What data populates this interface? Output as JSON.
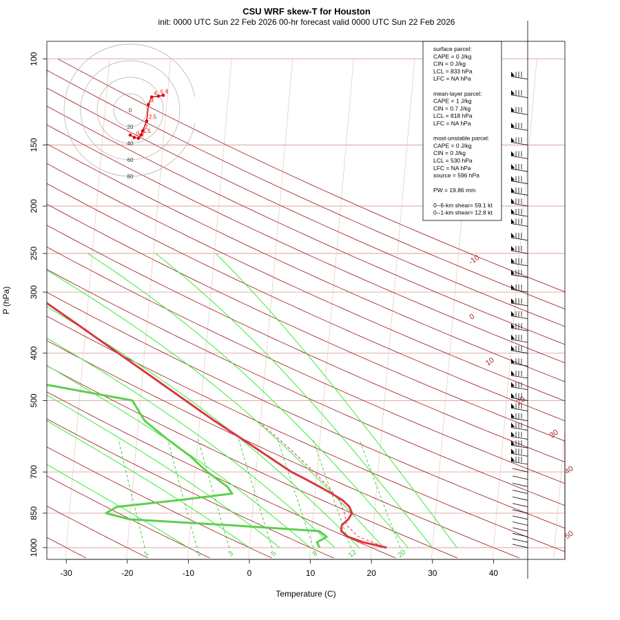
{
  "title": "CSU WRF skew-T for Houston",
  "subtitle": "init: 0000 UTC Sun 22 Feb 2026     00-hr forecast valid 0000 UTC Sun 22 Feb 2026",
  "chart_data": {
    "type": "line",
    "xlabel": "Temperature (C)",
    "ylabel": "P (hPa)",
    "x_ticks": [
      -30,
      -20,
      -10,
      0,
      10,
      20,
      30,
      40
    ],
    "y_ticks": [
      100,
      150,
      200,
      250,
      300,
      400,
      500,
      700,
      850,
      1000
    ],
    "xlim": [
      -33,
      47
    ],
    "ylim": [
      1050,
      100
    ],
    "isotherm_labels": [
      "-10",
      "0",
      "10",
      "20",
      "30",
      "40",
      "50"
    ],
    "mixing_ratio_labels": [
      "1",
      "2",
      "3",
      "5",
      "8",
      "12",
      "20"
    ],
    "series": [
      {
        "kind": "temperature",
        "color": "#dc3545",
        "points": [
          [
            1000,
            22.5
          ],
          [
            975,
            18.6
          ],
          [
            950,
            16.0
          ],
          [
            925,
            14.8
          ],
          [
            900,
            14.8
          ],
          [
            875,
            15.8
          ],
          [
            850,
            16.3
          ],
          [
            825,
            15.8
          ],
          [
            800,
            14.6
          ],
          [
            775,
            12.7
          ],
          [
            750,
            10.6
          ],
          [
            725,
            8.3
          ],
          [
            700,
            5.8
          ],
          [
            650,
            1.7
          ],
          [
            600,
            -2.7
          ],
          [
            550,
            -7.6
          ],
          [
            500,
            -12.6
          ],
          [
            450,
            -18.1
          ],
          [
            400,
            -24.3
          ],
          [
            350,
            -31.3
          ],
          [
            300,
            -39.5
          ],
          [
            275,
            -44.0
          ],
          [
            250,
            -48.7
          ],
          [
            225,
            -53.5
          ],
          [
            200,
            -57.5
          ],
          [
            175,
            -60.5
          ],
          [
            150,
            -62.0
          ],
          [
            125,
            -63.5
          ],
          [
            110,
            -64.5
          ]
        ]
      },
      {
        "kind": "dewpoint",
        "color": "#5ccf4d",
        "points": [
          [
            1000,
            11.5
          ],
          [
            975,
            11.0
          ],
          [
            950,
            12.5
          ],
          [
            925,
            11.2
          ],
          [
            900,
            -3.3
          ],
          [
            875,
            -20.0
          ],
          [
            850,
            -24.0
          ],
          [
            825,
            -22.3
          ],
          [
            800,
            -12.5
          ],
          [
            775,
            -3.6
          ],
          [
            750,
            -4.5
          ],
          [
            700,
            -8.0
          ],
          [
            650,
            -11.0
          ],
          [
            600,
            -15.0
          ],
          [
            550,
            -19.0
          ],
          [
            500,
            -21.3
          ],
          [
            450,
            -41.5
          ],
          [
            400,
            -47.0
          ],
          [
            350,
            -55.5
          ],
          [
            300,
            -64.0
          ],
          [
            250,
            -72.0
          ],
          [
            200,
            -81.0
          ],
          [
            175,
            -85.0
          ]
        ]
      },
      {
        "kind": "parcel",
        "color": "#dc3545",
        "style": "dashed",
        "points": [
          [
            1000,
            22.5
          ],
          [
            950,
            17.7
          ],
          [
            900,
            15.6
          ],
          [
            850,
            15.1
          ],
          [
            800,
            14.1
          ],
          [
            750,
            12.0
          ],
          [
            700,
            9.5
          ],
          [
            650,
            6.6
          ],
          [
            600,
            3.3
          ],
          [
            550,
            -0.5
          ]
        ]
      }
    ],
    "hodograph": {
      "ring_labels": [
        "0",
        "20",
        "40",
        "60",
        "80"
      ],
      "points": [
        [
          0,
          -10
        ],
        [
          5,
          -13
        ],
        [
          10,
          -14
        ],
        [
          13,
          -10
        ],
        [
          15,
          -5
        ],
        [
          20,
          7
        ],
        [
          22,
          27
        ],
        [
          26,
          36
        ],
        [
          34,
          37
        ],
        [
          40,
          38
        ]
      ],
      "point_labels": [
        "0.5",
        "1",
        "1.5",
        "2",
        "2.5",
        "3",
        "4",
        "5",
        "6"
      ]
    },
    "wind_barbs": {
      "color": "#000000",
      "levels_hPa": [
        110,
        120,
        130,
        140,
        150,
        160,
        170,
        180,
        190,
        200,
        210,
        220,
        235,
        250,
        265,
        280,
        300,
        320,
        340,
        360,
        380,
        400,
        425,
        450,
        475,
        500,
        525,
        550,
        575,
        600,
        625,
        650,
        675,
        700,
        725,
        750,
        775,
        800,
        825,
        850,
        875,
        900,
        925,
        950,
        975,
        1000
      ]
    }
  },
  "stats_box": {
    "surface_header": "surface parcel:",
    "surface": [
      "CAPE = 0 J/kg",
      "CIN = 0 J/kg",
      "LCL = 833 hPa",
      "LFC = NA hPa"
    ],
    "mean_header": "mean-layer parcel:",
    "mean": [
      "CAPE = 1 J/kg",
      "CIN = 0.7 J/kg",
      "LCL = 818 hPa",
      "LFC = NA hPa"
    ],
    "mu_header": "most-unstable parcel:",
    "mu": [
      "CAPE = 0 J/kg",
      "CIN = 0 J/kg",
      "LCL = 530 hPa",
      "LFC = NA hPa",
      "source = 596 hPa"
    ],
    "pw": "PW =  19.86 mm",
    "shear1": "0--6-km shear= 59.1 kt",
    "shear2": "0--1-km shear= 12.8 kt"
  },
  "colors": {
    "isotherm": "#a52a2a",
    "isobar": "#d9a0a0",
    "dry_adiabat": "#a52a2a",
    "moist_adiabat": "#33ee33",
    "mixing_ratio": "#33cc33",
    "temperature": "#dc3545",
    "dewpoint": "#5ccf4d",
    "hodograph": "#e00000"
  }
}
